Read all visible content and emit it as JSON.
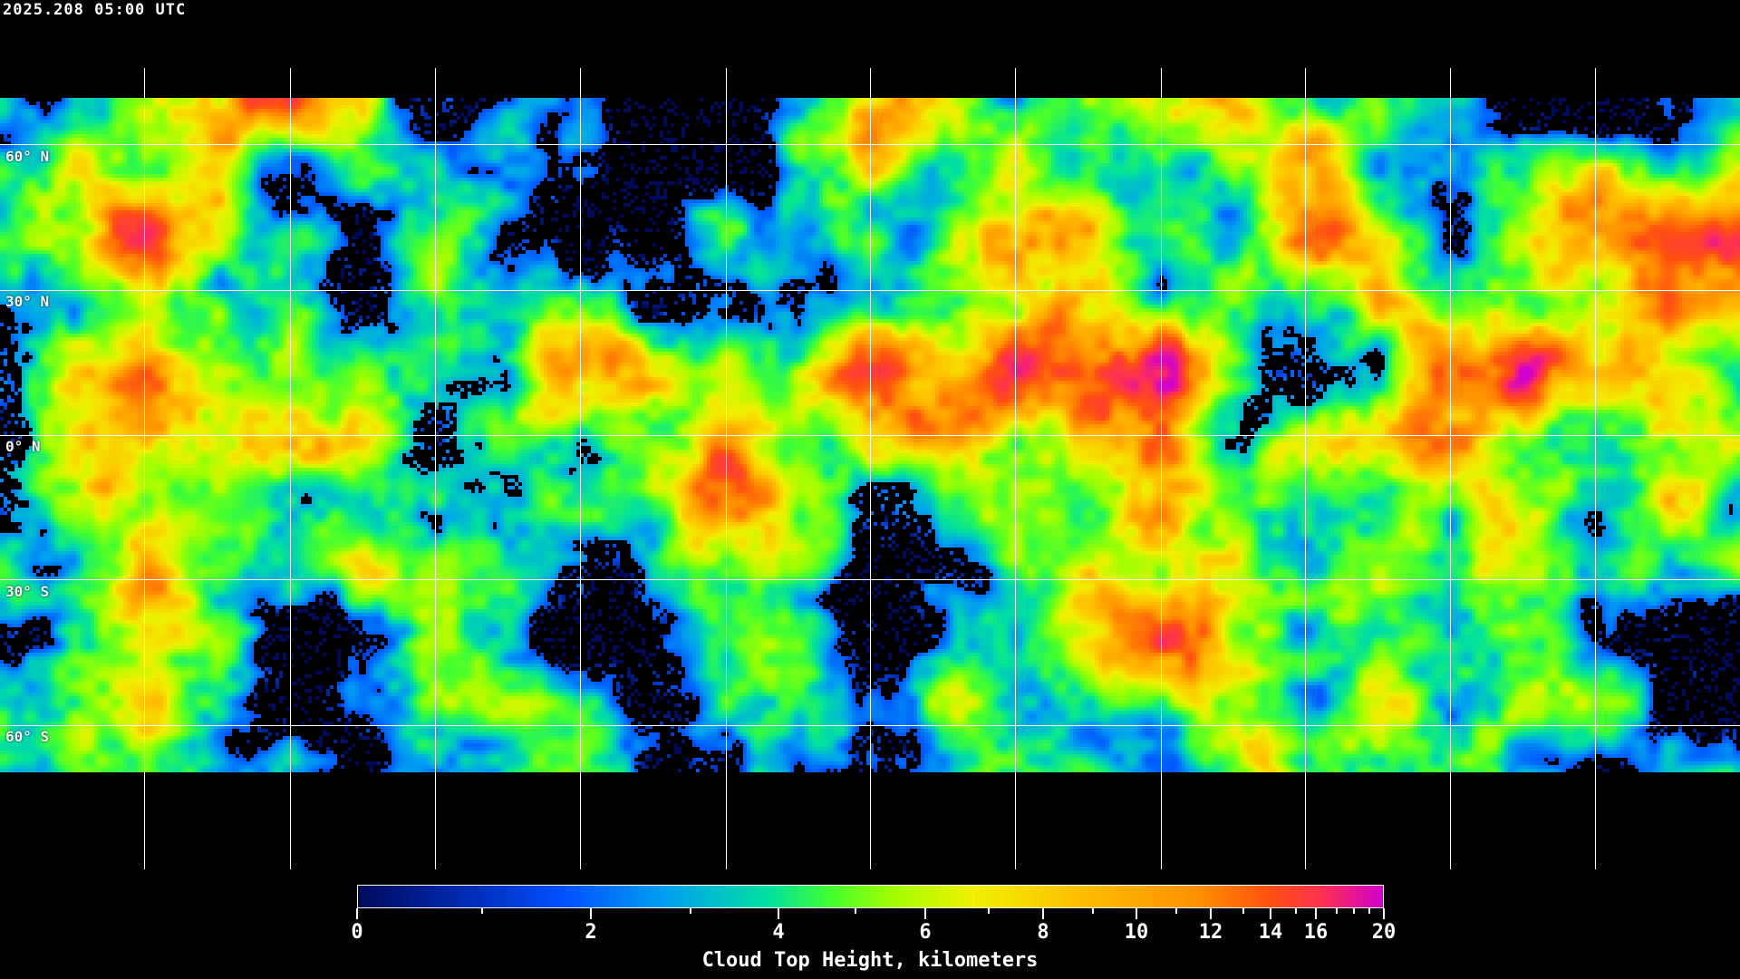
{
  "timestamp": "2025.208 05:00 UTC",
  "latitude_labels": [
    "60° N",
    "30° N",
    "0° N",
    "30° S",
    "60° S"
  ],
  "product": "Cloud Top Height",
  "colorbar": {
    "title": "Cloud Top Height, kilometers",
    "min": 0,
    "max": 20,
    "tick_labels": [
      "0",
      "2",
      "4",
      "6",
      "8",
      "10",
      "12",
      "14",
      "16",
      "20"
    ],
    "minor_ticks": [
      1,
      3,
      5,
      7,
      9,
      11,
      13,
      15,
      17,
      18,
      19
    ],
    "colors": [
      "#000a5c",
      "#0050ff",
      "#00a0f0",
      "#00e0a0",
      "#40ff30",
      "#a0ff00",
      "#f0f000",
      "#ffc000",
      "#ff9000",
      "#ff5010",
      "#ff3050",
      "#d000d0"
    ]
  }
}
